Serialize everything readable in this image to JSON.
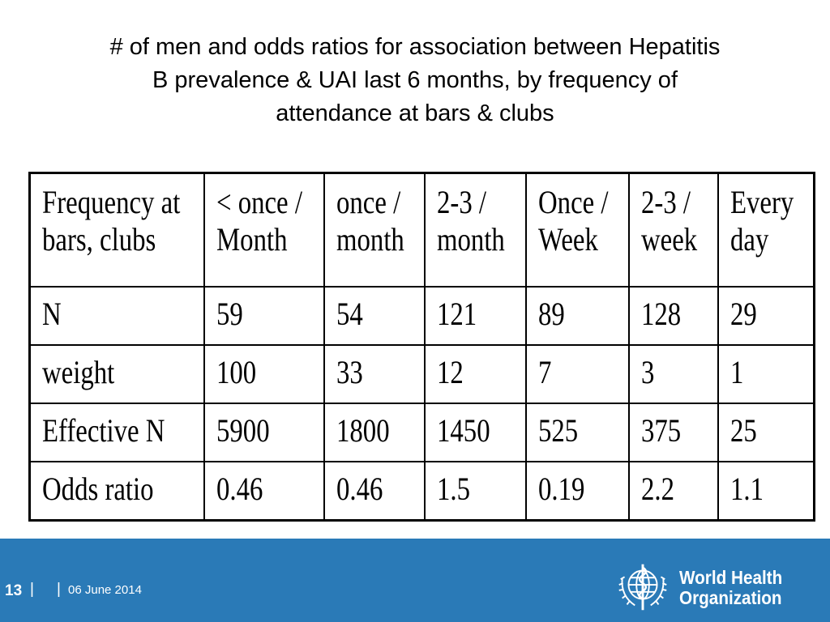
{
  "title": {
    "line1": "# of men and odds ratios for association between Hepatitis",
    "line2": "B prevalence & UAI last 6 months, by frequency of",
    "line3": "attendance at bars & clubs"
  },
  "table": {
    "header": {
      "label": [
        "Frequency at",
        "bars, clubs"
      ],
      "cols": [
        [
          "< once /",
          "Month"
        ],
        [
          "once /",
          "month"
        ],
        [
          "2-3 /",
          "month"
        ],
        [
          "Once /",
          "Week"
        ],
        [
          "2-3 /",
          "week"
        ],
        [
          "Every",
          "day"
        ]
      ]
    },
    "rows": [
      {
        "label": "N",
        "values": [
          "59",
          "54",
          "121",
          "89",
          "128",
          "29"
        ]
      },
      {
        "label": "weight",
        "values": [
          "100",
          "33",
          "12",
          "7",
          "3",
          "1"
        ]
      },
      {
        "label": "Effective N",
        "values": [
          "5900",
          "1800",
          "1450",
          "525",
          "375",
          "25"
        ]
      },
      {
        "label": "Odds ratio",
        "values": [
          "0.46",
          "0.46",
          "1.5",
          "0.19",
          "2.2",
          "1.1"
        ]
      }
    ]
  },
  "footer": {
    "page_number": "13",
    "separator": "|",
    "date": "06 June 2014",
    "org_line1": "World Health",
    "org_line2": "Organization",
    "footer_color": "#2a7ab7",
    "emblem_icon": "who-emblem-icon"
  }
}
